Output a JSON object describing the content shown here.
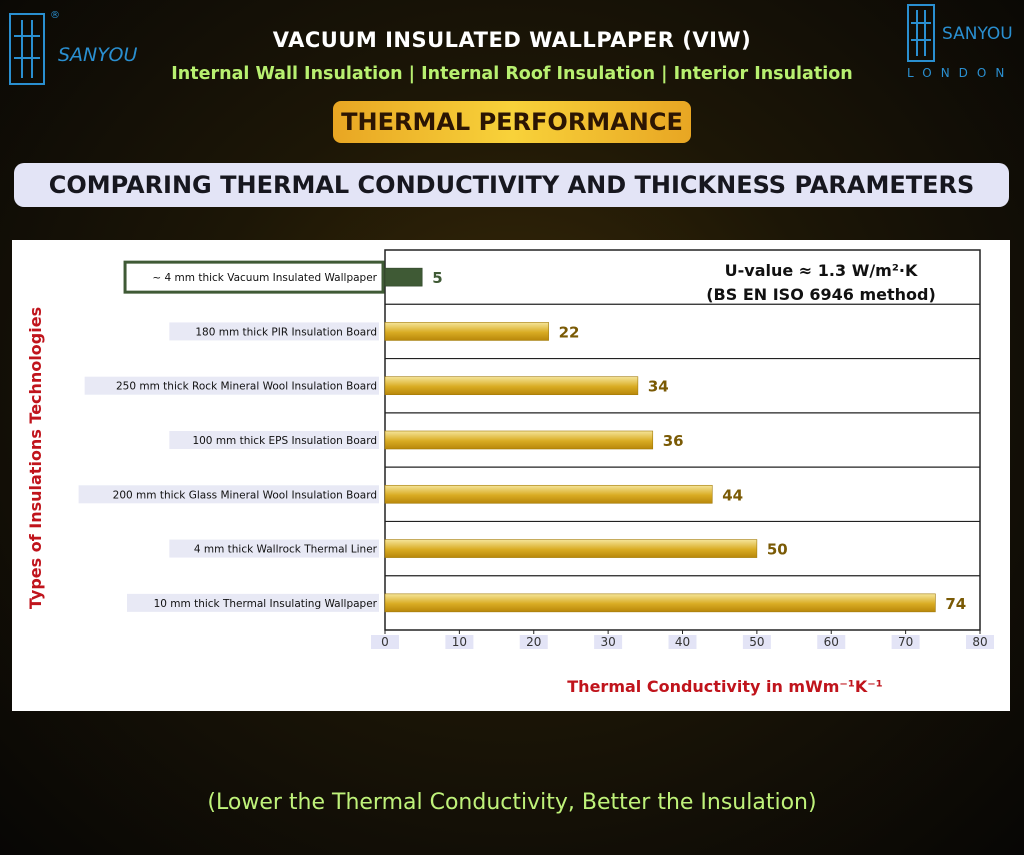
{
  "header": {
    "brand_left": "SANYOU",
    "registered_mark": "®",
    "brand_right": "SANYOU",
    "brand_right_sub": "LONDON",
    "title": "VACUUM INSULATED WALLPAPER (VIW)",
    "subtitle": "Internal Wall Insulation | Internal Roof Insulation |  Interior Insulation",
    "badge": "THERMAL PERFORMANCE",
    "banner": "COMPARING THERMAL CONDUCTIVITY AND THICKNESS PARAMETERS"
  },
  "chart_data": {
    "type": "bar",
    "orientation": "horizontal",
    "categories": [
      "~ 4 mm thick Vacuum Insulated Wallpaper",
      "180 mm thick PIR Insulation Board",
      "250 mm thick Rock Mineral Wool Insulation Board",
      "100 mm thick EPS Insulation Board",
      "200 mm thick Glass Mineral Wool Insulation Board",
      "4 mm thick Wallrock Thermal Liner",
      "10 mm thick Thermal Insulating Wallpaper"
    ],
    "values": [
      5,
      22,
      34,
      36,
      44,
      50,
      74
    ],
    "xlabel": "Thermal Conductivity in mWm⁻¹K⁻¹",
    "ylabel": "Types of  Insulations  Technologies",
    "xlim": [
      0,
      80
    ],
    "xticks": [
      0,
      10,
      20,
      30,
      40,
      50,
      60,
      70,
      80
    ],
    "highlight_index": 0,
    "annotation_line1": "U-value ≈ 1.3 W/m²·K",
    "annotation_line2": "(BS EN ISO 6946 method)",
    "grid": "horizontal",
    "colors": {
      "highlight": "#3f5a35",
      "bar": "#c99a0e",
      "bar_light": "#f3df86",
      "label": "#7a5a05",
      "axis_title": "#c0141c"
    }
  },
  "footer": {
    "note": "(Lower the Thermal Conductivity, Better the Insulation)"
  }
}
